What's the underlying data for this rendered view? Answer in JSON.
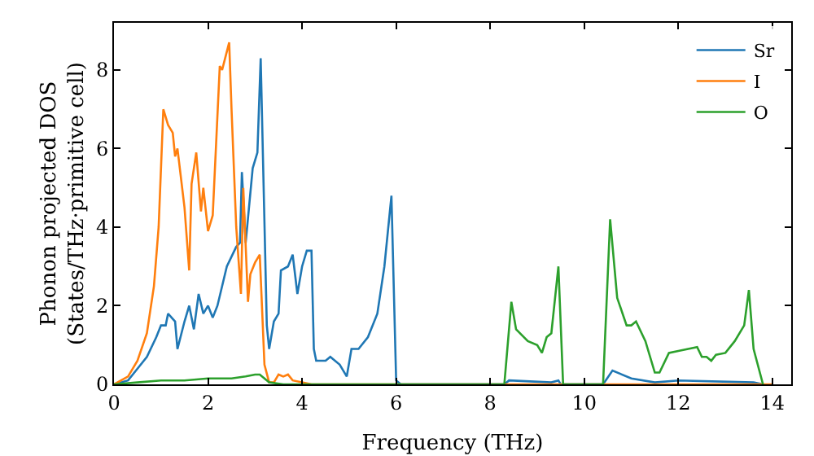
{
  "chart_data": {
    "type": "line",
    "xlabel": "Frequency (THz)",
    "ylabel": "Phonon projected DOS\n(States/THz·primitive cell)",
    "xlim": [
      0,
      14.4
    ],
    "ylim": [
      0,
      9.2
    ],
    "xticks": [
      0,
      2,
      4,
      6,
      8,
      10,
      12,
      14
    ],
    "yticks": [
      0,
      2,
      4,
      6,
      8
    ],
    "grid": false,
    "legend": "top right",
    "marker": "none",
    "line_style": "solid",
    "series": [
      {
        "name": "Sr",
        "color": "#1f77b4",
        "x": [
          0,
          0.3,
          0.5,
          0.7,
          0.9,
          1.0,
          1.1,
          1.15,
          1.3,
          1.35,
          1.5,
          1.6,
          1.7,
          1.8,
          1.9,
          2.0,
          2.1,
          2.2,
          2.4,
          2.6,
          2.68,
          2.72,
          2.8,
          2.95,
          3.05,
          3.12,
          3.25,
          3.3,
          3.4,
          3.5,
          3.55,
          3.7,
          3.8,
          3.9,
          4.0,
          4.1,
          4.2,
          4.25,
          4.3,
          4.5,
          4.6,
          4.8,
          4.95,
          5.05,
          5.2,
          5.4,
          5.6,
          5.75,
          5.9,
          6.0,
          6.1,
          8.3,
          8.4,
          9.3,
          9.45,
          9.5,
          10.4,
          10.6,
          11.0,
          11.5,
          12.0,
          13.6,
          13.8
        ],
        "values": [
          0,
          0.1,
          0.4,
          0.7,
          1.2,
          1.5,
          1.5,
          1.8,
          1.6,
          0.9,
          1.6,
          2.0,
          1.4,
          2.3,
          1.8,
          2.0,
          1.7,
          2.0,
          3.0,
          3.5,
          3.6,
          5.4,
          3.6,
          5.5,
          5.9,
          8.3,
          1.5,
          0.9,
          1.6,
          1.8,
          2.9,
          3.0,
          3.3,
          2.3,
          3.0,
          3.4,
          3.4,
          0.9,
          0.6,
          0.6,
          0.7,
          0.5,
          0.2,
          0.9,
          0.9,
          1.2,
          1.8,
          3.0,
          4.8,
          0.1,
          0,
          0,
          0.1,
          0.05,
          0.1,
          0,
          0,
          0.35,
          0.15,
          0.05,
          0.1,
          0.05,
          0
        ]
      },
      {
        "name": "I",
        "color": "#ff7f0e",
        "x": [
          0,
          0.3,
          0.5,
          0.7,
          0.85,
          0.95,
          1.05,
          1.15,
          1.25,
          1.3,
          1.35,
          1.5,
          1.6,
          1.65,
          1.75,
          1.85,
          1.9,
          2.0,
          2.1,
          2.25,
          2.3,
          2.45,
          2.5,
          2.6,
          2.7,
          2.75,
          2.85,
          2.9,
          3.0,
          3.1,
          3.2,
          3.3,
          3.4,
          3.5,
          3.6,
          3.7,
          3.8,
          4.0,
          4.2,
          14
        ],
        "values": [
          0,
          0.2,
          0.6,
          1.3,
          2.5,
          4.0,
          7.0,
          6.6,
          6.4,
          5.8,
          6.0,
          4.5,
          2.9,
          5.1,
          5.9,
          4.4,
          5.0,
          3.9,
          4.3,
          8.1,
          8.0,
          8.7,
          7.0,
          4.0,
          2.3,
          5.0,
          2.1,
          2.8,
          3.1,
          3.3,
          0.5,
          0.05,
          0.05,
          0.25,
          0.2,
          0.25,
          0.1,
          0.05,
          0,
          0
        ]
      },
      {
        "name": "O",
        "color": "#2ca02c",
        "x": [
          0,
          0.5,
          1.0,
          1.5,
          2.0,
          2.5,
          2.8,
          3.0,
          3.1,
          3.3,
          3.6,
          8.3,
          8.45,
          8.55,
          8.8,
          9.0,
          9.1,
          9.2,
          9.3,
          9.45,
          9.55,
          10.4,
          10.55,
          10.7,
          10.9,
          11.0,
          11.1,
          11.3,
          11.5,
          11.6,
          11.8,
          12.0,
          12.4,
          12.5,
          12.6,
          12.7,
          12.8,
          13.0,
          13.2,
          13.4,
          13.5,
          13.6,
          13.8
        ],
        "values": [
          0,
          0.05,
          0.1,
          0.1,
          0.15,
          0.15,
          0.2,
          0.25,
          0.25,
          0.05,
          0,
          0,
          2.1,
          1.4,
          1.1,
          1.0,
          0.8,
          1.2,
          1.3,
          3.0,
          0,
          0,
          4.2,
          2.2,
          1.5,
          1.5,
          1.6,
          1.1,
          0.3,
          0.3,
          0.8,
          0.85,
          0.95,
          0.7,
          0.7,
          0.6,
          0.75,
          0.8,
          1.1,
          1.5,
          2.4,
          0.9,
          0
        ]
      }
    ]
  }
}
